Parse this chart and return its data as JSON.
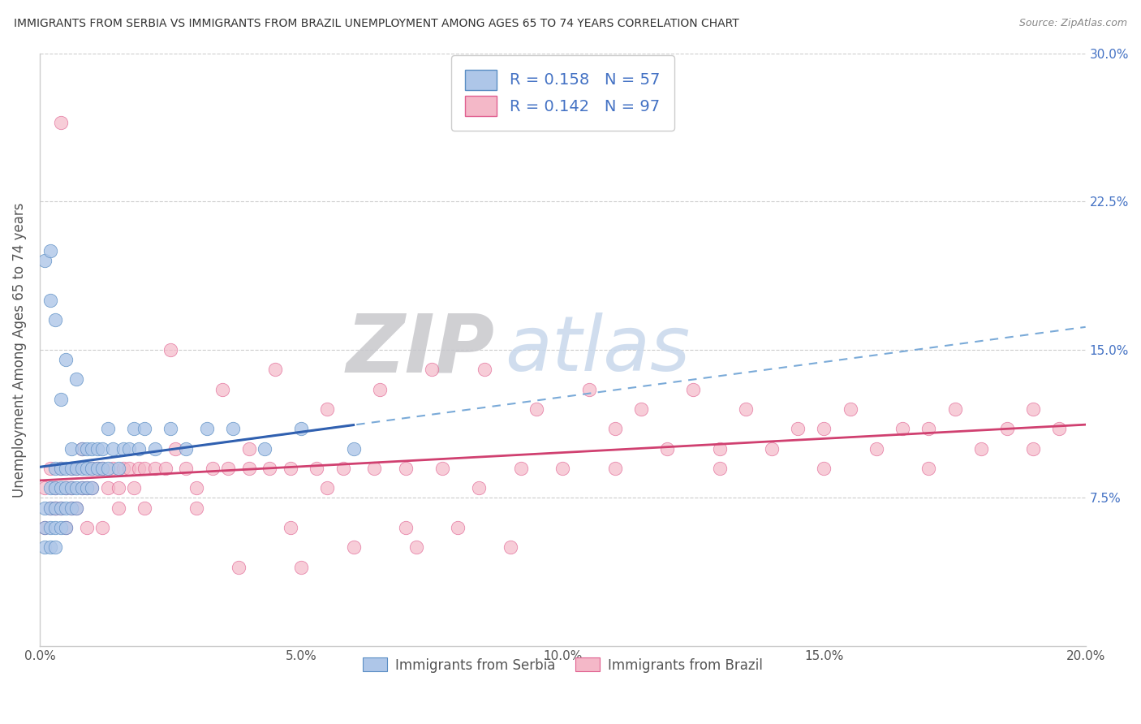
{
  "title": "IMMIGRANTS FROM SERBIA VS IMMIGRANTS FROM BRAZIL UNEMPLOYMENT AMONG AGES 65 TO 74 YEARS CORRELATION CHART",
  "source": "Source: ZipAtlas.com",
  "ylabel": "Unemployment Among Ages 65 to 74 years",
  "legend_label_1": "Immigrants from Serbia",
  "legend_label_2": "Immigrants from Brazil",
  "R1": 0.158,
  "N1": 57,
  "R2": 0.142,
  "N2": 97,
  "color1": "#aec6e8",
  "color1_edge": "#5b8ec4",
  "color2": "#f4b8c8",
  "color2_edge": "#e06090",
  "trendline1_color": "#3060b0",
  "trendline1_dash_color": "#7aaad8",
  "trendline2_color": "#d04070",
  "xlim": [
    0.0,
    0.2
  ],
  "ylim": [
    0.0,
    0.3
  ],
  "xticks": [
    0.0,
    0.05,
    0.1,
    0.15,
    0.2
  ],
  "xticklabels": [
    "0.0%",
    "5.0%",
    "10.0%",
    "15.0%",
    "20.0%"
  ],
  "yticks": [
    0.0,
    0.075,
    0.15,
    0.225,
    0.3
  ],
  "right_yticklabels": [
    "",
    "7.5%",
    "15.0%",
    "22.5%",
    "30.0%"
  ],
  "watermark_zip": "ZIP",
  "watermark_atlas": "atlas",
  "background_color": "#ffffff",
  "grid_color": "#cccccc",
  "tick_label_color": "#4472c4",
  "title_color": "#333333",
  "source_color": "#888888",
  "serbia_x": [
    0.001,
    0.001,
    0.001,
    0.002,
    0.002,
    0.002,
    0.002,
    0.003,
    0.003,
    0.003,
    0.003,
    0.003,
    0.004,
    0.004,
    0.004,
    0.004,
    0.005,
    0.005,
    0.005,
    0.005,
    0.006,
    0.006,
    0.006,
    0.006,
    0.007,
    0.007,
    0.007,
    0.008,
    0.008,
    0.008,
    0.009,
    0.009,
    0.009,
    0.01,
    0.01,
    0.01,
    0.011,
    0.011,
    0.012,
    0.012,
    0.013,
    0.013,
    0.014,
    0.015,
    0.016,
    0.017,
    0.018,
    0.019,
    0.02,
    0.022,
    0.025,
    0.028,
    0.032,
    0.037,
    0.043,
    0.05,
    0.06
  ],
  "serbia_y": [
    0.05,
    0.06,
    0.07,
    0.06,
    0.05,
    0.07,
    0.08,
    0.05,
    0.06,
    0.07,
    0.08,
    0.09,
    0.06,
    0.07,
    0.08,
    0.09,
    0.06,
    0.07,
    0.08,
    0.09,
    0.07,
    0.08,
    0.09,
    0.1,
    0.07,
    0.08,
    0.09,
    0.08,
    0.09,
    0.1,
    0.08,
    0.09,
    0.1,
    0.08,
    0.09,
    0.1,
    0.09,
    0.1,
    0.09,
    0.1,
    0.09,
    0.11,
    0.1,
    0.09,
    0.1,
    0.1,
    0.11,
    0.1,
    0.11,
    0.1,
    0.11,
    0.1,
    0.11,
    0.11,
    0.1,
    0.11,
    0.1
  ],
  "serbia_outliers_x": [
    0.001,
    0.002,
    0.003,
    0.005,
    0.007,
    0.002,
    0.004
  ],
  "serbia_outliers_y": [
    0.195,
    0.175,
    0.165,
    0.145,
    0.135,
    0.2,
    0.125
  ],
  "brazil_x": [
    0.001,
    0.001,
    0.002,
    0.002,
    0.003,
    0.003,
    0.004,
    0.004,
    0.005,
    0.005,
    0.006,
    0.006,
    0.007,
    0.007,
    0.008,
    0.008,
    0.009,
    0.01,
    0.01,
    0.011,
    0.012,
    0.013,
    0.014,
    0.015,
    0.016,
    0.017,
    0.018,
    0.019,
    0.02,
    0.022,
    0.024,
    0.026,
    0.028,
    0.03,
    0.033,
    0.036,
    0.04,
    0.044,
    0.048,
    0.053,
    0.058,
    0.064,
    0.07,
    0.077,
    0.084,
    0.092,
    0.1,
    0.11,
    0.12,
    0.13,
    0.14,
    0.15,
    0.16,
    0.17,
    0.18,
    0.19,
    0.004,
    0.035,
    0.025,
    0.045,
    0.055,
    0.065,
    0.075,
    0.085,
    0.095,
    0.105,
    0.115,
    0.125,
    0.135,
    0.145,
    0.155,
    0.165,
    0.175,
    0.185,
    0.195,
    0.048,
    0.072,
    0.038,
    0.05,
    0.06,
    0.08,
    0.09,
    0.07,
    0.03,
    0.02,
    0.015,
    0.012,
    0.009,
    0.006,
    0.003,
    0.04,
    0.055,
    0.11,
    0.13,
    0.15,
    0.17,
    0.19
  ],
  "brazil_y": [
    0.06,
    0.08,
    0.07,
    0.09,
    0.07,
    0.08,
    0.07,
    0.09,
    0.08,
    0.06,
    0.08,
    0.09,
    0.07,
    0.09,
    0.08,
    0.1,
    0.08,
    0.08,
    0.09,
    0.09,
    0.09,
    0.08,
    0.09,
    0.08,
    0.09,
    0.09,
    0.08,
    0.09,
    0.09,
    0.09,
    0.09,
    0.1,
    0.09,
    0.08,
    0.09,
    0.09,
    0.09,
    0.09,
    0.09,
    0.09,
    0.09,
    0.09,
    0.09,
    0.09,
    0.08,
    0.09,
    0.09,
    0.09,
    0.1,
    0.09,
    0.1,
    0.09,
    0.1,
    0.09,
    0.1,
    0.1,
    0.265,
    0.13,
    0.15,
    0.14,
    0.12,
    0.13,
    0.14,
    0.14,
    0.12,
    0.13,
    0.12,
    0.13,
    0.12,
    0.11,
    0.12,
    0.11,
    0.12,
    0.11,
    0.11,
    0.06,
    0.05,
    0.04,
    0.04,
    0.05,
    0.06,
    0.05,
    0.06,
    0.07,
    0.07,
    0.07,
    0.06,
    0.06,
    0.07,
    0.07,
    0.1,
    0.08,
    0.11,
    0.1,
    0.11,
    0.11,
    0.12
  ]
}
